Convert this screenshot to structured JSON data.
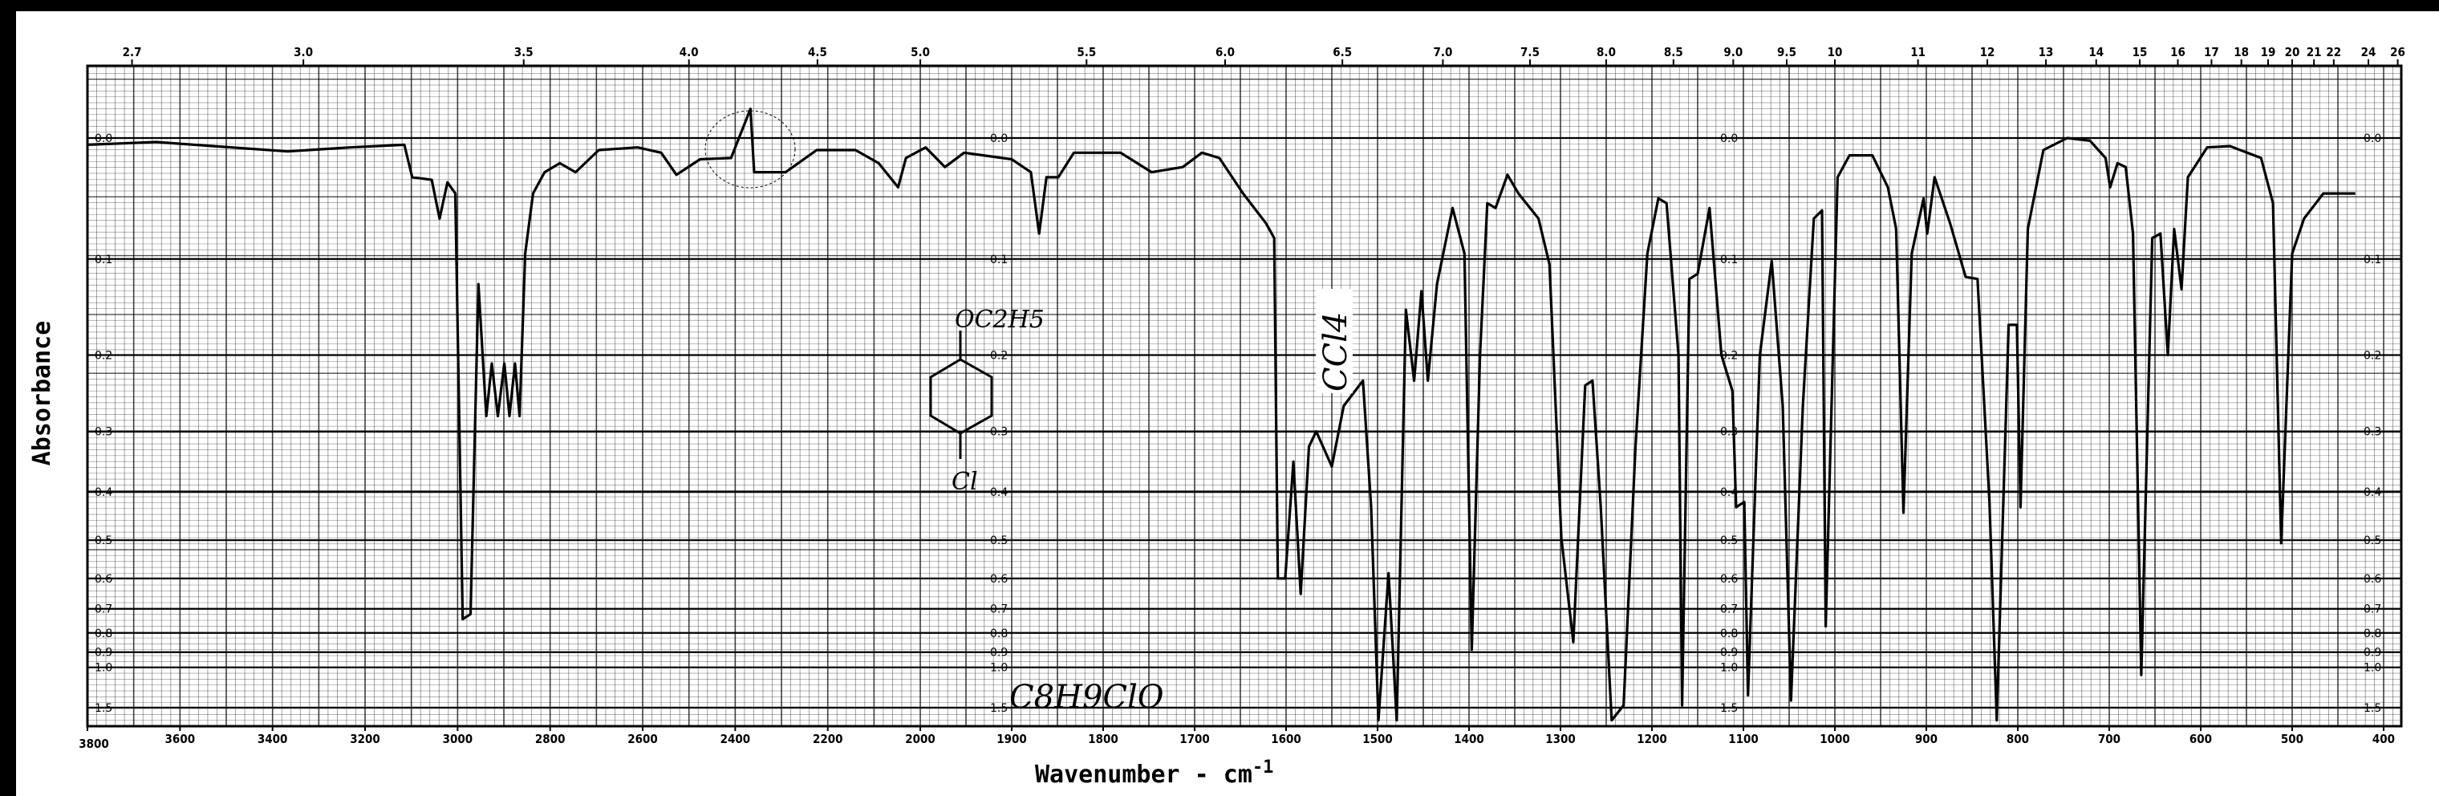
{
  "chart_data": {
    "type": "line",
    "title": "",
    "xlabel": "Wavenumber - cm",
    "xlabel_superscript": "-1",
    "ylabel": "Absorbance",
    "xlim": [
      3800,
      400
    ],
    "x_scale": "piecewise linear (3800-2000 compressed, 2000-400 expanded)",
    "y_scale": "absorbance (linear in transmittance)",
    "grid": true,
    "x_tick_labels": [
      "3800",
      "3600",
      "3400",
      "3200",
      "3000",
      "2800",
      "2600",
      "2400",
      "2200",
      "2000",
      "1900",
      "1800",
      "1700",
      "1600",
      "1500",
      "1400",
      "1300",
      "1200",
      "1100",
      "1000",
      "900",
      "800",
      "700",
      "600",
      "500",
      "400"
    ],
    "x_ticks": [
      3800,
      3600,
      3400,
      3200,
      3000,
      2800,
      2600,
      2400,
      2200,
      2000,
      1900,
      1800,
      1700,
      1600,
      1500,
      1400,
      1300,
      1200,
      1100,
      1000,
      900,
      800,
      700,
      600,
      500,
      400
    ],
    "top_axis_microns": [
      "2.7",
      "3.0",
      "3.5",
      "4.0",
      "4.5",
      "5.0",
      "5.5",
      "6.0",
      "6.5",
      "7.0",
      "7.5",
      "8.0",
      "8.5",
      "9.0",
      "9.5",
      "10",
      "11",
      "12",
      "13",
      "14",
      "15",
      "16",
      "17",
      "18",
      "19",
      "20",
      "21",
      "22",
      "24",
      "26"
    ],
    "y_tick_labels": [
      "0.0",
      "0.1",
      "0.2",
      "0.3",
      "0.4",
      "0.5",
      "0.6",
      "0.7",
      "0.8",
      "0.9",
      "1.0",
      "1.5"
    ],
    "y_ticks": [
      0.0,
      0.1,
      0.2,
      0.3,
      0.4,
      0.5,
      0.6,
      0.7,
      0.8,
      0.9,
      1.0,
      1.5
    ],
    "annotations": {
      "solvent": "CCl4",
      "formula": "C8H9ClO",
      "substituent_top": "OC2H5",
      "substituent_bottom": "Cl"
    },
    "series": [
      {
        "x": [
          3800,
          3652,
          3367,
          3232,
          3115,
          3098,
          3056,
          3039,
          3022,
          3005,
          2989,
          2972,
          2955,
          2938,
          2926,
          2913,
          2899,
          2888,
          2876,
          2866,
          2854,
          2837,
          2812,
          2779,
          2745,
          2695,
          2611,
          2560,
          2527,
          2476,
          2409,
          2367,
          2359,
          2291,
          2224,
          2140,
          2090,
          2048,
          2031,
          1994,
          1973,
          1952,
          1900,
          1879,
          1870,
          1862,
          1849,
          1832,
          1781,
          1747,
          1713,
          1692,
          1673,
          1647,
          1622,
          1613,
          1609,
          1601,
          1592,
          1584,
          1575,
          1567,
          1550,
          1537,
          1516,
          1507,
          1499,
          1488,
          1479,
          1469,
          1460,
          1452,
          1445,
          1435,
          1418,
          1405,
          1397,
          1388,
          1380,
          1371,
          1358,
          1346,
          1324,
          1312,
          1299,
          1286,
          1273,
          1265,
          1256,
          1244,
          1231,
          1218,
          1205,
          1193,
          1184,
          1171,
          1167,
          1159,
          1150,
          1137,
          1124,
          1112,
          1108,
          1099,
          1095,
          1082,
          1069,
          1057,
          1048,
          1035,
          1023,
          1014,
          1010,
          997,
          984,
          959,
          942,
          933,
          925,
          916,
          903,
          899,
          891,
          874,
          857,
          844,
          831,
          823,
          810,
          801,
          797,
          789,
          772,
          746,
          721,
          704,
          699,
          691,
          682,
          674,
          665,
          653,
          644,
          636,
          629,
          621,
          614,
          593,
          568,
          534,
          521,
          512,
          500,
          487,
          466,
          431
        ],
        "y": [
          0.005,
          0.003,
          0.01,
          0.007,
          0.005,
          0.03,
          0.032,
          0.064,
          0.034,
          0.043,
          0.74,
          0.72,
          0.124,
          0.278,
          0.21,
          0.278,
          0.21,
          0.278,
          0.21,
          0.278,
          0.095,
          0.043,
          0.026,
          0.019,
          0.026,
          0.009,
          0.007,
          0.011,
          0.028,
          0.016,
          0.015,
          -0.021,
          0.026,
          0.026,
          0.009,
          0.009,
          0.019,
          0.038,
          0.015,
          0.007,
          0.022,
          0.011,
          0.016,
          0.026,
          0.077,
          0.03,
          0.03,
          0.011,
          0.011,
          0.026,
          0.022,
          0.011,
          0.015,
          0.043,
          0.068,
          0.081,
          0.6,
          0.6,
          0.347,
          0.648,
          0.323,
          0.3,
          0.355,
          0.264,
          0.231,
          0.429,
          2.0,
          0.585,
          2.0,
          0.15,
          0.231,
          0.131,
          0.231,
          0.124,
          0.055,
          0.095,
          0.886,
          0.2,
          0.051,
          0.055,
          0.028,
          0.043,
          0.064,
          0.105,
          0.495,
          0.845,
          0.237,
          0.231,
          0.429,
          2.0,
          1.45,
          0.323,
          0.095,
          0.047,
          0.051,
          0.2,
          1.45,
          0.119,
          0.114,
          0.055,
          0.2,
          0.244,
          0.429,
          0.419,
          1.28,
          0.2,
          0.102,
          0.264,
          1.36,
          0.264,
          0.064,
          0.057,
          0.77,
          0.03,
          0.013,
          0.013,
          0.038,
          0.073,
          0.44,
          0.095,
          0.047,
          0.077,
          0.03,
          0.068,
          0.117,
          0.119,
          0.419,
          2.0,
          0.166,
          0.166,
          0.429,
          0.073,
          0.009,
          0.0,
          0.002,
          0.015,
          0.038,
          0.019,
          0.022,
          0.077,
          1.06,
          0.081,
          0.077,
          0.2,
          0.073,
          0.129,
          0.03,
          0.007,
          0.006,
          0.015,
          0.051,
          0.507,
          0.095,
          0.064,
          0.043,
          0.043
        ]
      }
    ]
  }
}
